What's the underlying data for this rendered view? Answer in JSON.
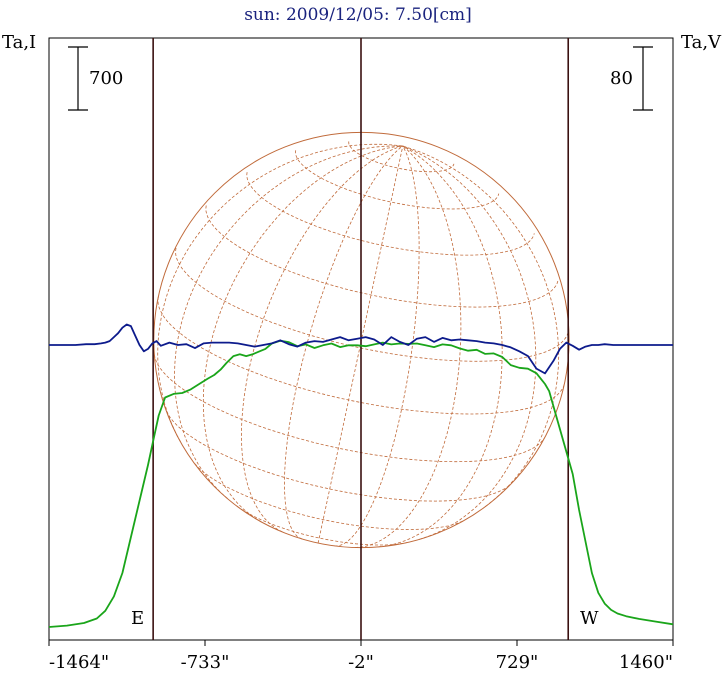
{
  "chart_data": {
    "type": "line",
    "title": "sun: 2009/12/05: 7.50[cm]",
    "title_color": "#1a237e",
    "left_axis_label": "Ta,I",
    "right_axis_label": "Ta,V",
    "left_scale_label": "700",
    "right_scale_label": "80",
    "x_tick_labels": [
      "-1464\"",
      "-733\"",
      "-2\"",
      "729\"",
      "1460\""
    ],
    "x_ticks": [
      -1464,
      -733,
      -2,
      729,
      1460
    ],
    "xlim": [
      -1464,
      1460
    ],
    "limb_labels": {
      "east": "E",
      "west": "W"
    },
    "solar_radius_arcsec": 973,
    "grid": false,
    "colors": {
      "intensity": "#1aa51a",
      "polarization": "#0d1b8c",
      "disk": "#c06a3a",
      "markers": "#3a1010"
    },
    "vertical_markers": [
      -976,
      -2,
      969
    ],
    "series": [
      {
        "name": "Ta,I",
        "color": "#1aa51a",
        "x": [
          -1464,
          -1380,
          -1300,
          -1240,
          -1200,
          -1160,
          -1120,
          -1090,
          -1060,
          -1030,
          -1000,
          -975,
          -950,
          -920,
          -880,
          -840,
          -800,
          -760,
          -720,
          -690,
          -660,
          -630,
          -600,
          -570,
          -540,
          -510,
          -480,
          -450,
          -420,
          -380,
          -340,
          -300,
          -260,
          -220,
          -180,
          -140,
          -100,
          -60,
          -20,
          20,
          60,
          100,
          140,
          180,
          220,
          260,
          300,
          340,
          380,
          420,
          460,
          500,
          540,
          580,
          620,
          660,
          700,
          740,
          780,
          820,
          860,
          880,
          900,
          930,
          960,
          990,
          1020,
          1050,
          1080,
          1110,
          1140,
          1170,
          1200,
          1240,
          1300,
          1380,
          1460
        ],
        "values": [
          0,
          15,
          45,
          95,
          180,
          340,
          600,
          900,
          1200,
          1500,
          1800,
          2080,
          2350,
          2550,
          2590,
          2600,
          2640,
          2700,
          2760,
          2800,
          2860,
          2940,
          3010,
          3030,
          3010,
          3030,
          3060,
          3090,
          3150,
          3180,
          3165,
          3120,
          3140,
          3100,
          3130,
          3150,
          3110,
          3130,
          3130,
          3120,
          3140,
          3160,
          3140,
          3150,
          3145,
          3150,
          3130,
          3110,
          3140,
          3130,
          3095,
          3070,
          3080,
          3035,
          3040,
          3000,
          2910,
          2880,
          2870,
          2820,
          2700,
          2620,
          2450,
          2200,
          1950,
          1700,
          1300,
          950,
          600,
          380,
          260,
          190,
          150,
          120,
          90,
          60,
          30
        ]
      },
      {
        "name": "Ta,V",
        "color": "#0d1b8c",
        "x": [
          -1464,
          -1400,
          -1340,
          -1290,
          -1250,
          -1220,
          -1200,
          -1180,
          -1160,
          -1140,
          -1120,
          -1100,
          -1080,
          -1060,
          -1040,
          -1020,
          -1000,
          -980,
          -960,
          -940,
          -900,
          -860,
          -820,
          -780,
          -740,
          -700,
          -660,
          -620,
          -580,
          -540,
          -500,
          -460,
          -420,
          -380,
          -340,
          -300,
          -260,
          -220,
          -180,
          -140,
          -100,
          -60,
          -20,
          20,
          60,
          100,
          140,
          180,
          220,
          260,
          300,
          340,
          380,
          420,
          460,
          500,
          540,
          580,
          620,
          660,
          700,
          740,
          780,
          820,
          860,
          900,
          930,
          960,
          990,
          1020,
          1050,
          1080,
          1110,
          1140,
          1180,
          1220,
          1260,
          1300,
          1380,
          1460
        ],
        "values": [
          0,
          0,
          0,
          1,
          1,
          2,
          3,
          5,
          10,
          15,
          22,
          26,
          24,
          12,
          0,
          -8,
          -5,
          2,
          5,
          -1,
          3,
          0,
          1,
          -4,
          2,
          3,
          3,
          3,
          2,
          0,
          -2,
          0,
          2,
          6,
          1,
          -2,
          3,
          5,
          4,
          7,
          10,
          6,
          8,
          10,
          7,
          0,
          10,
          4,
          0,
          8,
          10,
          4,
          9,
          6,
          7,
          6,
          5,
          3,
          2,
          0,
          -3,
          -8,
          -14,
          -30,
          -36,
          -20,
          -5,
          3,
          -1,
          -6,
          -2,
          0,
          0,
          1,
          0,
          0,
          0,
          0,
          0,
          0
        ]
      }
    ]
  }
}
